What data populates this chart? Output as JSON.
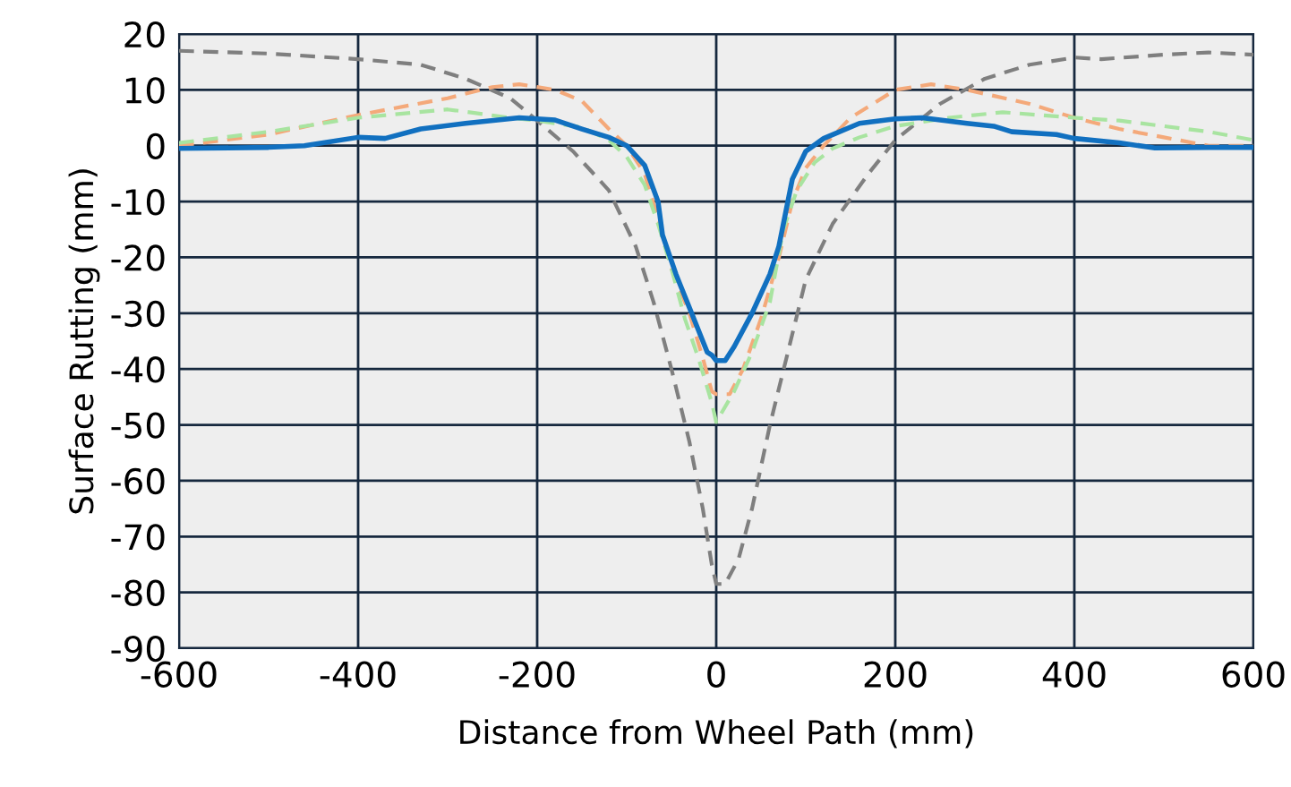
{
  "chart_data": {
    "type": "line",
    "xlabel": "Distance from Wheel Path (mm)",
    "ylabel": "Surface Rutting (mm)",
    "xlim": [
      -600,
      600
    ],
    "ylim": [
      -90,
      20
    ],
    "xticks": [
      -600,
      -400,
      -200,
      0,
      200,
      400,
      600
    ],
    "yticks": [
      -90,
      -80,
      -70,
      -60,
      -50,
      -40,
      -30,
      -20,
      -10,
      0,
      10,
      20
    ],
    "grid": true,
    "marker": "none",
    "series": [
      {
        "color": "#7f7f7f",
        "line_style": "dashed",
        "x": [
          -600,
          -500,
          -400,
          -330,
          -280,
          -230,
          -200,
          -160,
          -120,
          -90,
          -70,
          -50,
          -30,
          -15,
          -5,
          0,
          10,
          25,
          40,
          60,
          80,
          100,
          130,
          170,
          200,
          250,
          300,
          350,
          400,
          430,
          500,
          550,
          600
        ],
        "values": [
          17,
          16.5,
          15.5,
          14.5,
          12,
          8.5,
          4.5,
          -1,
          -8,
          -18,
          -28,
          -40,
          -53,
          -65,
          -75,
          -78.5,
          -78.5,
          -74,
          -65,
          -50,
          -37,
          -24,
          -14,
          -5,
          1,
          7.5,
          12,
          14.5,
          15.8,
          15.5,
          16.3,
          16.7,
          16.3
        ]
      },
      {
        "color": "#f4a97a",
        "line_style": "dashed",
        "x": [
          -600,
          -500,
          -400,
          -300,
          -250,
          -220,
          -180,
          -150,
          -120,
          -100,
          -80,
          -65,
          -50,
          -30,
          -15,
          -5,
          0,
          15,
          30,
          50,
          70,
          85,
          100,
          120,
          150,
          200,
          240,
          280,
          350,
          400,
          450,
          500,
          550,
          600
        ],
        "values": [
          0,
          2,
          5.5,
          8.5,
          10.5,
          11,
          10,
          8,
          3,
          0,
          -5,
          -13,
          -22,
          -30,
          -38,
          -44,
          -44.5,
          -44.5,
          -40,
          -31,
          -20,
          -10,
          -4,
          0,
          5,
          10,
          11,
          10,
          7.5,
          5,
          3,
          1.5,
          0,
          0
        ]
      },
      {
        "color": "#a8e4a0",
        "line_style": "dashed",
        "x": [
          -600,
          -500,
          -400,
          -300,
          -230,
          -200,
          -150,
          -120,
          -100,
          -80,
          -65,
          -50,
          -35,
          -20,
          -5,
          0,
          20,
          40,
          60,
          75,
          90,
          110,
          130,
          160,
          200,
          260,
          320,
          400,
          450,
          550,
          600
        ],
        "values": [
          0.5,
          2.5,
          5,
          6.5,
          5,
          4.5,
          3.3,
          1,
          -2,
          -7,
          -14,
          -22,
          -31,
          -38,
          -46,
          -49.5,
          -44,
          -37,
          -28,
          -15,
          -8,
          -3,
          -0.5,
          1.5,
          3.5,
          5,
          6,
          5,
          4.5,
          2.5,
          1
        ]
      },
      {
        "color": "#1170c0",
        "line_style": "solid",
        "x": [
          -600,
          -500,
          -460,
          -400,
          -370,
          -330,
          -280,
          -220,
          -180,
          -150,
          -120,
          -100,
          -80,
          -65,
          -60,
          -45,
          -30,
          -15,
          -10,
          -5,
          0,
          10,
          20,
          40,
          60,
          70,
          80,
          85,
          100,
          120,
          160,
          200,
          230,
          280,
          310,
          330,
          380,
          400,
          450,
          490,
          550,
          600
        ],
        "values": [
          -0.5,
          -0.3,
          0,
          1.5,
          1.3,
          3,
          4,
          5,
          4.6,
          3,
          1.5,
          0,
          -3.5,
          -10,
          -16,
          -23,
          -29,
          -35,
          -37,
          -37.5,
          -38.5,
          -38.5,
          -36,
          -30,
          -23,
          -18,
          -10,
          -6,
          -1,
          1.3,
          4,
          4.8,
          5,
          4,
          3.5,
          2.5,
          2,
          1.3,
          0.5,
          -0.4,
          -0.3,
          -0.3
        ]
      }
    ]
  }
}
